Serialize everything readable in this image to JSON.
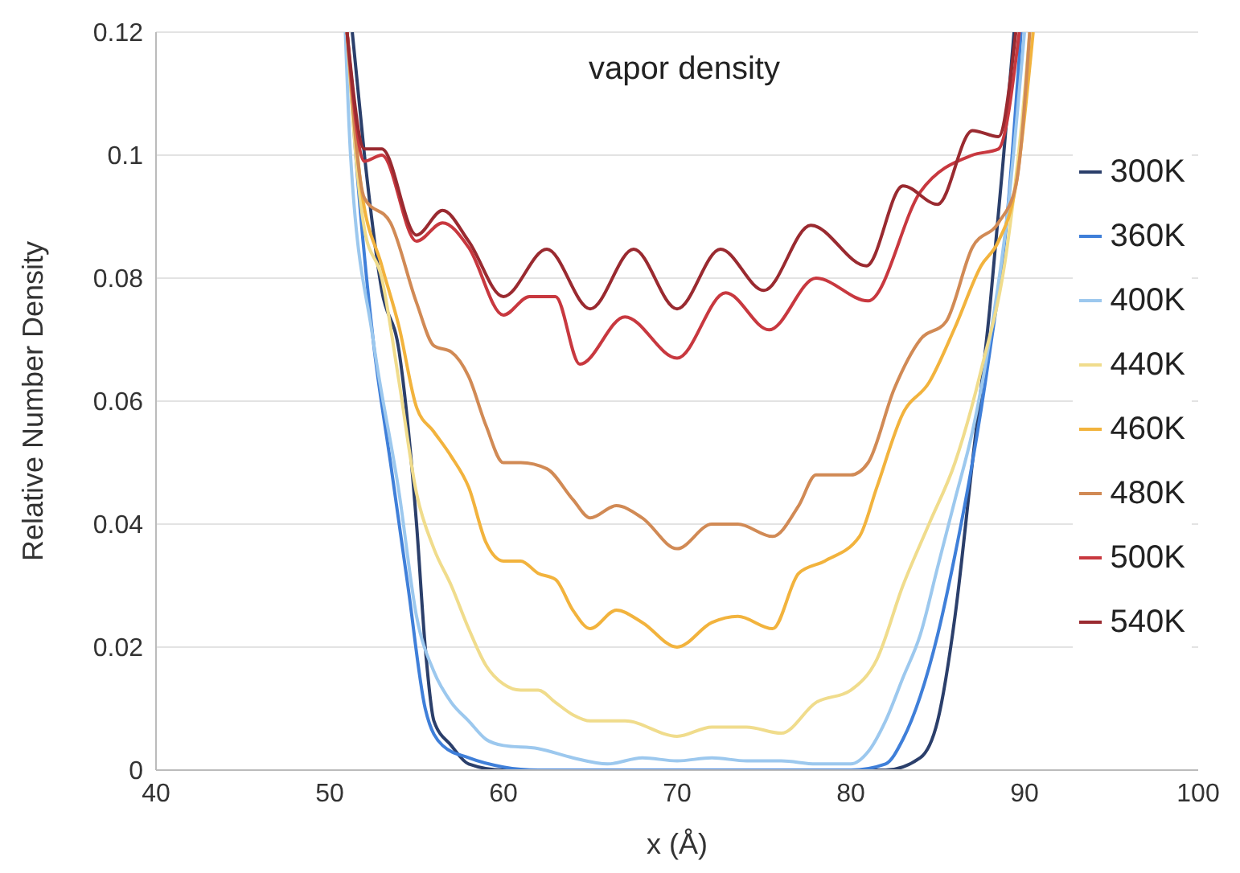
{
  "chart_data": {
    "type": "line",
    "title": "vapor density",
    "xlabel": "x (Å)",
    "ylabel": "Relative Number Density",
    "xlim": [
      40,
      100
    ],
    "xticks": [
      40,
      50,
      60,
      70,
      80,
      90,
      100
    ],
    "ylim": [
      0,
      0.12
    ],
    "yticks": [
      0,
      0.02,
      0.04,
      0.06,
      0.08,
      0.1,
      0.12
    ],
    "grid": "y",
    "legend": "right",
    "marker": "none",
    "line_style": "solid",
    "series": [
      {
        "name": "300K",
        "color": "#2b3f6b",
        "x": [
          51.3,
          52,
          53,
          54,
          55,
          55.5,
          56,
          57,
          58,
          60,
          70,
          82,
          84,
          85,
          86,
          87,
          88,
          88.8,
          89.4
        ],
        "values": [
          0.12,
          0.1,
          0.078,
          0.068,
          0.04,
          0.02,
          0.008,
          0.004,
          0.001,
          0,
          0,
          0,
          0.002,
          0.008,
          0.025,
          0.05,
          0.075,
          0.1,
          0.12
        ]
      },
      {
        "name": "360K",
        "color": "#3f7fd9",
        "x": [
          51,
          51.5,
          52.5,
          53.5,
          54.5,
          55.5,
          56.5,
          58,
          60,
          62,
          70,
          80,
          82,
          83,
          84,
          85,
          86,
          87,
          88,
          89,
          89.8
        ],
        "values": [
          0.12,
          0.1,
          0.07,
          0.05,
          0.03,
          0.01,
          0.004,
          0.002,
          0.0005,
          0,
          0,
          0,
          0.001,
          0.005,
          0.012,
          0.022,
          0.035,
          0.05,
          0.068,
          0.09,
          0.12
        ]
      },
      {
        "name": "400K",
        "color": "#9cc8ee",
        "x": [
          50.9,
          51.2,
          52.5,
          54,
          55,
          56,
          57,
          58,
          59,
          60,
          62,
          64,
          66,
          68,
          70,
          72,
          74,
          76,
          78,
          80,
          81,
          82,
          83,
          84,
          85,
          86,
          87,
          88,
          89,
          90
        ],
        "values": [
          0.12,
          0.1,
          0.07,
          0.045,
          0.025,
          0.016,
          0.011,
          0.008,
          0.005,
          0.004,
          0.0035,
          0.002,
          0.001,
          0.002,
          0.0015,
          0.002,
          0.0015,
          0.0015,
          0.001,
          0.001,
          0.003,
          0.008,
          0.015,
          0.022,
          0.033,
          0.044,
          0.055,
          0.07,
          0.09,
          0.12
        ]
      },
      {
        "name": "440K",
        "color": "#f0dc8c",
        "x": [
          51,
          51.5,
          52,
          53,
          54,
          55,
          56,
          57,
          58,
          59,
          60,
          61,
          62,
          63,
          64,
          65,
          67,
          70,
          72,
          74,
          76,
          78,
          80,
          81.5,
          83,
          84.5,
          86,
          87.5,
          89,
          90,
          90.3
        ],
        "values": [
          0.12,
          0.1,
          0.088,
          0.08,
          0.063,
          0.045,
          0.036,
          0.03,
          0.023,
          0.017,
          0.014,
          0.013,
          0.013,
          0.011,
          0.009,
          0.008,
          0.008,
          0.0055,
          0.007,
          0.007,
          0.006,
          0.011,
          0.013,
          0.018,
          0.03,
          0.04,
          0.05,
          0.065,
          0.085,
          0.11,
          0.12
        ]
      },
      {
        "name": "460K",
        "color": "#f2b33d",
        "x": [
          51,
          51.8,
          53,
          54,
          55,
          56,
          57,
          58,
          59,
          60,
          61,
          62,
          63,
          64,
          65,
          66.5,
          68,
          70,
          72,
          73.5,
          75.5,
          77,
          78.5,
          80.5,
          81.5,
          83,
          84.5,
          86,
          87.5,
          88.5,
          89.5,
          90.5
        ],
        "values": [
          0.12,
          0.095,
          0.082,
          0.072,
          0.059,
          0.055,
          0.051,
          0.046,
          0.037,
          0.034,
          0.034,
          0.032,
          0.031,
          0.026,
          0.023,
          0.026,
          0.024,
          0.02,
          0.024,
          0.025,
          0.023,
          0.032,
          0.034,
          0.038,
          0.046,
          0.058,
          0.063,
          0.072,
          0.082,
          0.086,
          0.095,
          0.12
        ]
      },
      {
        "name": "480K",
        "color": "#d18a55",
        "x": [
          51,
          52,
          53.5,
          55,
          56,
          57,
          58,
          59,
          60,
          61,
          62.5,
          64,
          65,
          66.5,
          68,
          70,
          72,
          73.5,
          75.5,
          77,
          78,
          80,
          81,
          82.5,
          84,
          85.5,
          87,
          88.5,
          89.5,
          90.3
        ],
        "values": [
          0.12,
          0.093,
          0.089,
          0.076,
          0.069,
          0.068,
          0.064,
          0.056,
          0.05,
          0.05,
          0.049,
          0.044,
          0.041,
          0.043,
          0.041,
          0.036,
          0.04,
          0.04,
          0.038,
          0.043,
          0.048,
          0.048,
          0.05,
          0.062,
          0.07,
          0.073,
          0.085,
          0.089,
          0.095,
          0.12
        ]
      },
      {
        "name": "500K",
        "color": "#c8383f",
        "x": [
          51,
          52,
          53,
          55,
          56.5,
          58,
          60,
          61.5,
          63,
          64.4,
          67,
          70,
          72.8,
          75.3,
          78,
          81,
          84,
          87,
          88.5,
          89.7
        ],
        "values": [
          0.12,
          0.099,
          0.1,
          0.086,
          0.089,
          0.085,
          0.074,
          0.077,
          0.077,
          0.066,
          0.0737,
          0.067,
          0.0776,
          0.0716,
          0.08,
          0.0763,
          0.094,
          0.1,
          0.101,
          0.12
        ]
      },
      {
        "name": "540K",
        "color": "#9a2a30",
        "x": [
          51,
          52,
          53,
          55,
          56.5,
          58,
          60,
          62.5,
          65,
          67.5,
          70,
          72.5,
          75,
          77.7,
          80.9,
          83,
          85,
          87,
          88.5,
          89.5
        ],
        "values": [
          0.12,
          0.101,
          0.101,
          0.087,
          0.091,
          0.086,
          0.077,
          0.0847,
          0.075,
          0.0847,
          0.075,
          0.0847,
          0.078,
          0.0886,
          0.082,
          0.095,
          0.092,
          0.104,
          0.103,
          0.12
        ]
      }
    ]
  }
}
